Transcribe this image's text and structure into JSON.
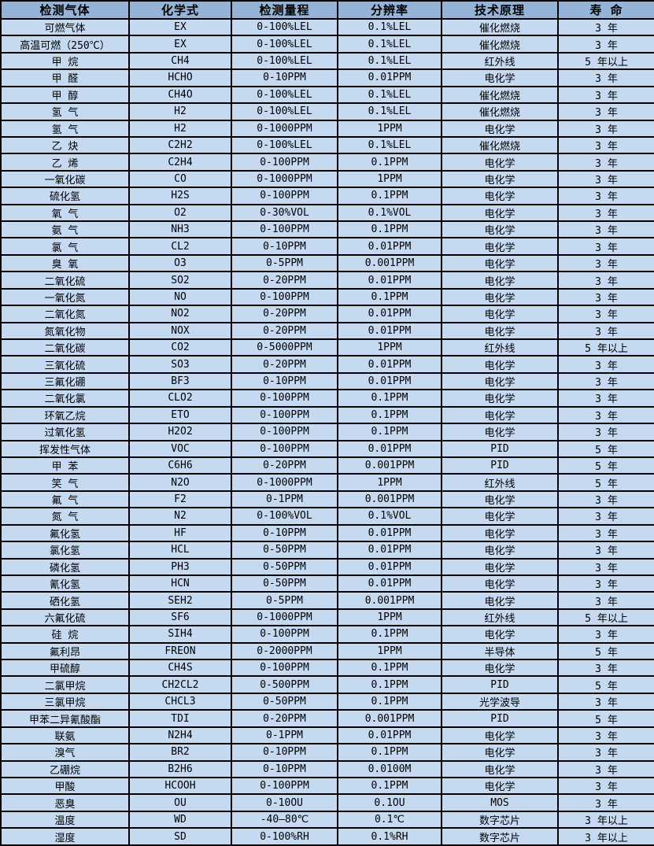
{
  "colors": {
    "header_bg": "#95b3d7",
    "row_bg": "#c5d9f1",
    "border": "#000000",
    "text": "#000000"
  },
  "table": {
    "column_keys": [
      "gas",
      "formula",
      "range",
      "resolution",
      "principle",
      "lifespan"
    ],
    "headers": [
      "检测气体",
      "化学式",
      "检测量程",
      "分辨率",
      "技术原理",
      "寿 命"
    ],
    "rows": [
      [
        "可燃气体",
        "EX",
        "0-100%LEL",
        "0.1%LEL",
        "催化燃烧",
        "3 年"
      ],
      [
        "高温可燃（250℃）",
        "EX",
        "0-100%LEL",
        "0.1%LEL",
        "催化燃烧",
        "3 年"
      ],
      [
        "甲 烷",
        "CH4",
        "0-100%LEL",
        "0.1%LEL",
        "红外线",
        "5 年以上"
      ],
      [
        "甲 醛",
        "HCHO",
        "0-10PPM",
        "0.01PPM",
        "电化学",
        "3 年"
      ],
      [
        "甲 醇",
        "CH4O",
        "0-100%LEL",
        "0.1%LEL",
        "催化燃烧",
        "3 年"
      ],
      [
        "氢 气",
        "H2",
        "0-100%LEL",
        "0.1%LEL",
        "催化燃烧",
        "3 年"
      ],
      [
        "氢 气",
        "H2",
        "0-1000PPM",
        "1PPM",
        "电化学",
        "3 年"
      ],
      [
        "乙 炔",
        "C2H2",
        "0-100%LEL",
        "0.1%LEL",
        "催化燃烧",
        "3 年"
      ],
      [
        "乙 烯",
        "C2H4",
        "0-100PPM",
        "0.1PPM",
        "电化学",
        "3 年"
      ],
      [
        "一氧化碳",
        "CO",
        "0-1000PPM",
        "1PPM",
        "电化学",
        "3 年"
      ],
      [
        "硫化氢",
        "H2S",
        "0-100PPM",
        "0.1PPM",
        "电化学",
        "3 年"
      ],
      [
        "氧 气",
        "O2",
        "0-30%VOL",
        "0.1%VOL",
        "电化学",
        "3 年"
      ],
      [
        "氨 气",
        "NH3",
        "0-100PPM",
        "0.1PPM",
        "电化学",
        "3 年"
      ],
      [
        "氯 气",
        "CL2",
        "0-10PPM",
        "0.01PPM",
        "电化学",
        "3 年"
      ],
      [
        "臭 氧",
        "O3",
        "0-5PPM",
        "0.001PPM",
        "电化学",
        "3 年"
      ],
      [
        "二氧化硫",
        "SO2",
        "0-20PPM",
        "0.01PPM",
        "电化学",
        "3 年"
      ],
      [
        "一氧化氮",
        "NO",
        "0-100PPM",
        "0.1PPM",
        "电化学",
        "3 年"
      ],
      [
        "二氧化氮",
        "NO2",
        "0-20PPM",
        "0.01PPM",
        "电化学",
        "3 年"
      ],
      [
        "氮氧化物",
        "NOX",
        "0-20PPM",
        "0.01PPM",
        "电化学",
        "3 年"
      ],
      [
        "二氧化碳",
        "CO2",
        "0-5000PPM",
        "1PPM",
        "红外线",
        "5 年以上"
      ],
      [
        "三氧化硫",
        "SO3",
        "0-20PPM",
        "0.01PPM",
        "电化学",
        "3 年"
      ],
      [
        "三氟化硼",
        "BF3",
        "0-10PPM",
        "0.01PPM",
        "电化学",
        "3 年"
      ],
      [
        "二氧化氯",
        "CLO2",
        "0-100PPM",
        "0.1PPM",
        "电化学",
        "3 年"
      ],
      [
        "环氧乙烷",
        "ETO",
        "0-100PPM",
        "0.1PPM",
        "电化学",
        "3 年"
      ],
      [
        "过氧化氢",
        "H2O2",
        "0-100PPM",
        "0.1PPM",
        "电化学",
        "3 年"
      ],
      [
        "挥发性气体",
        "VOC",
        "0-100PPM",
        "0.01PPM",
        "PID",
        "5 年"
      ],
      [
        "甲 苯",
        "C6H6",
        "0-20PPM",
        "0.001PPM",
        "PID",
        "5 年"
      ],
      [
        "笑 气",
        "N2O",
        "0-1000PPM",
        "1PPM",
        "红外线",
        "5 年"
      ],
      [
        "氟 气",
        "F2",
        "0-1PPM",
        "0.001PPM",
        "电化学",
        "3 年"
      ],
      [
        "氮 气",
        "N2",
        "0-100%VOL",
        "0.1%VOL",
        "电化学",
        "3 年"
      ],
      [
        "氟化氢",
        "HF",
        "0-10PPM",
        "0.01PPM",
        "电化学",
        "3 年"
      ],
      [
        "氯化氢",
        "HCL",
        "0-50PPM",
        "0.01PPM",
        "电化学",
        "3 年"
      ],
      [
        "磷化氢",
        "PH3",
        "0-50PPM",
        "0.01PPM",
        "电化学",
        "3 年"
      ],
      [
        "氰化氢",
        "HCN",
        "0-50PPM",
        "0.01PPM",
        "电化学",
        "3 年"
      ],
      [
        "硒化氢",
        "SEH2",
        "0-5PPM",
        "0.001PPM",
        "电化学",
        "3 年"
      ],
      [
        "六氟化硫",
        "SF6",
        "0-1000PPM",
        "1PPM",
        "红外线",
        "5 年以上"
      ],
      [
        "硅 烷",
        "SIH4",
        "0-100PPM",
        "0.1PPM",
        "电化学",
        "3 年"
      ],
      [
        "氟利昂",
        "FREON",
        "0-2000PPM",
        "1PPM",
        "半导体",
        "5 年"
      ],
      [
        "甲硫醇",
        "CH4S",
        "0-100PPM",
        "0.1PPM",
        "电化学",
        "3 年"
      ],
      [
        "二氯甲烷",
        "CH2CL2",
        "0-500PPM",
        "0.1PPM",
        "PID",
        "5 年"
      ],
      [
        "三氯甲烷",
        "CHCL3",
        "0-50PPM",
        "0.1PPM",
        "光学波导",
        "3 年"
      ],
      [
        "甲苯二异氰酸酯",
        "TDI",
        "0-20PPM",
        "0.001PPM",
        "PID",
        "5 年"
      ],
      [
        "联氨",
        "N2H4",
        "0-1PPM",
        "0.01PPM",
        "电化学",
        "3 年"
      ],
      [
        "溴气",
        "BR2",
        "0-10PPM",
        "0.1PPM",
        "电化学",
        "3 年"
      ],
      [
        "乙硼烷",
        "B2H6",
        "0-10PPM",
        "0.0100M",
        "电化学",
        "3 年"
      ],
      [
        "甲酸",
        "HCOOH",
        "0-100PPM",
        "0.1PPM",
        "电化学",
        "3 年"
      ],
      [
        "恶臭",
        "OU",
        "0-10OU",
        "0.1OU",
        "MOS",
        "3 年"
      ],
      [
        "温度",
        "WD",
        "-40—80℃",
        "0.1℃",
        "数字芯片",
        "3 年以上"
      ],
      [
        "湿度",
        "SD",
        "0-100%RH",
        "0.1%RH",
        "数字芯片",
        "3 年以上"
      ]
    ]
  }
}
